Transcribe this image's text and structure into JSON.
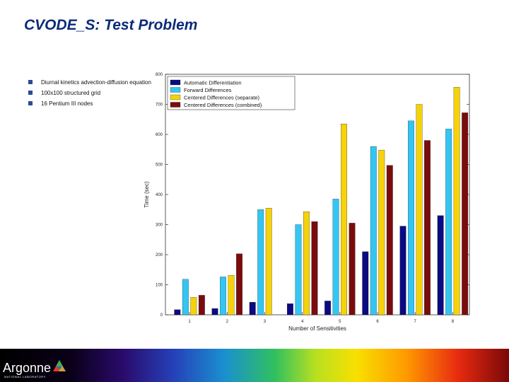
{
  "slide": {
    "title": "CVODE_S: Test Problem",
    "bullets": [
      "Diurnal kinetics advection-diffusion equation",
      "100x100 structured grid",
      "16 Pentium III nodes"
    ]
  },
  "footer": {
    "logo_text": "Argonne",
    "logo_subtext": "NATIONAL LABORATORY"
  },
  "chart_data": {
    "type": "bar",
    "categories": [
      "1",
      "2",
      "3",
      "4",
      "5",
      "6",
      "7",
      "8"
    ],
    "series": [
      {
        "name": "Automatic Differentiation",
        "color": "#0a0a82",
        "values": [
          17,
          21,
          42,
          37,
          46,
          210,
          295,
          330
        ]
      },
      {
        "name": "Forward Differences",
        "color": "#33c6f2",
        "values": [
          118,
          126,
          350,
          300,
          385,
          560,
          645,
          618
        ]
      },
      {
        "name": "Centered Differences (separate)",
        "color": "#f5d20a",
        "values": [
          58,
          131,
          355,
          343,
          635,
          548,
          700,
          757
        ]
      },
      {
        "name": "Centered Differences (combined)",
        "color": "#7a0c0c",
        "values": [
          65,
          203,
          null,
          310,
          305,
          497,
          580,
          672
        ]
      }
    ],
    "xlabel": "Number of Sensitivities",
    "ylabel": "Time (sec)",
    "ylim": [
      0,
      800
    ],
    "yticks": [
      0,
      100,
      200,
      300,
      400,
      500,
      600,
      700,
      800
    ],
    "legend_position": "top-left",
    "grid": false
  }
}
